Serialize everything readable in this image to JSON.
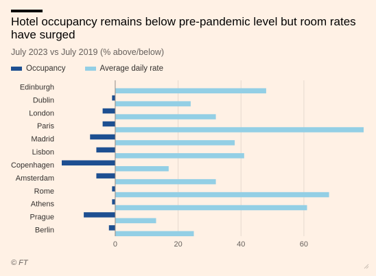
{
  "header": {
    "title": "Hotel occupancy remains below pre-pandemic level but room rates have surged",
    "subtitle": "July 2023 vs July 2019 (% above/below)"
  },
  "footer": {
    "source": "© FT"
  },
  "colors": {
    "background": "#fff1e5",
    "occupancy": "#1d4f91",
    "adr": "#93cfe5",
    "zero_line": "#8f8a85",
    "grid": "#e6d9ce"
  },
  "chart_data": {
    "type": "bar",
    "orientation": "horizontal",
    "categories": [
      "Edinburgh",
      "Dublin",
      "London",
      "Paris",
      "Madrid",
      "Lisbon",
      "Copenhagen",
      "Amsterdam",
      "Rome",
      "Athens",
      "Prague",
      "Berlin"
    ],
    "series": [
      {
        "name": "Occupancy",
        "color": "#1d4f91",
        "values": [
          0,
          -1,
          -4,
          -4,
          -8,
          -6,
          -17,
          -6,
          -1,
          -1,
          -10,
          -2
        ]
      },
      {
        "name": "Average daily rate",
        "color": "#93cfe5",
        "values": [
          48,
          24,
          32,
          79,
          38,
          41,
          17,
          32,
          68,
          61,
          13,
          25
        ]
      }
    ],
    "x_ticks": [
      0,
      20,
      40,
      60
    ],
    "x_tick_labels": [
      "0",
      "20",
      "40",
      "60"
    ],
    "xlim": [
      -17,
      79
    ],
    "grid": true,
    "legend_position": "top-left"
  }
}
